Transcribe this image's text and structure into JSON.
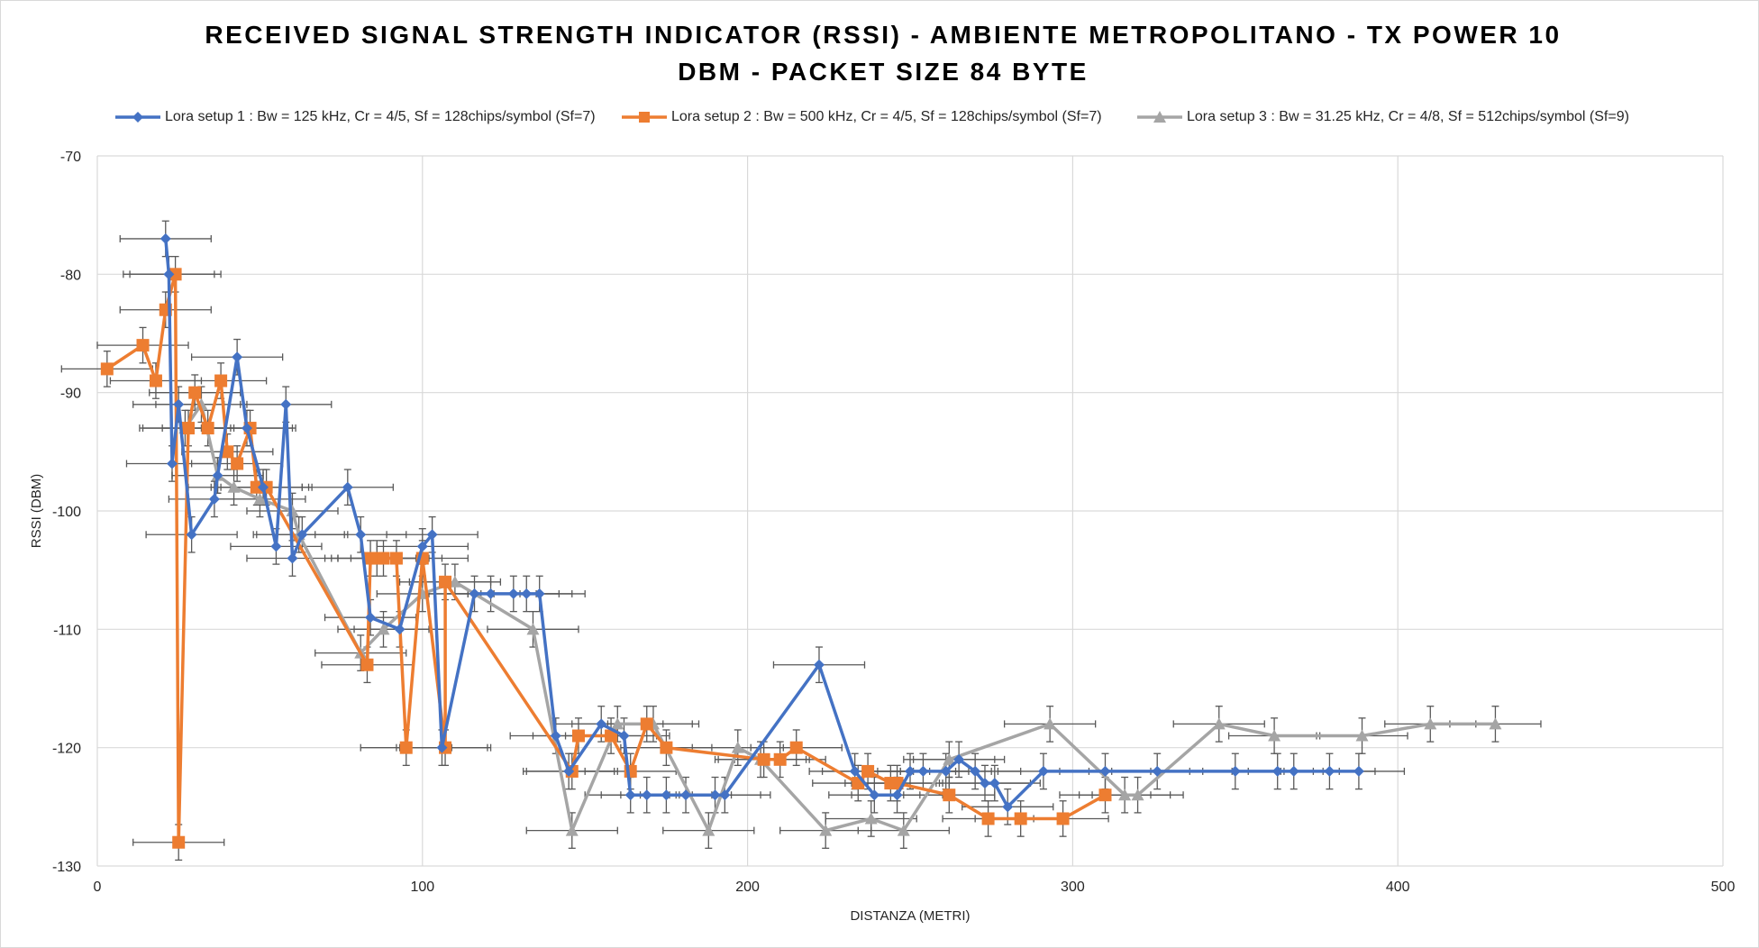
{
  "chart_data": {
    "type": "scatter",
    "title_line1": "RECEIVED SIGNAL STRENGTH INDICATOR (RSSI) - AMBIENTE METROPOLITANO - TX POWER 10",
    "title_line2": "DBM - PACKET SIZE 84 BYTE",
    "xlabel": "DISTANZA (METRI)",
    "ylabel": "RSSI (DBM)",
    "xlim": [
      0,
      500
    ],
    "ylim": [
      -130,
      -70
    ],
    "xticks": [
      "0",
      "100",
      "200",
      "300",
      "400",
      "500"
    ],
    "yticks": [
      "-70",
      "-80",
      "-90",
      "-100",
      "-110",
      "-120",
      "-130"
    ],
    "grid": true,
    "legend_position": "top",
    "error_bars": {
      "x": "about ±14 m",
      "y": "about ±1.5 dBm"
    },
    "series": [
      {
        "name": "Lora setup 1 : Bw = 125 kHz, Cr = 4/5, Sf = 128chips/symbol (Sf=7)",
        "color": "#4472C4",
        "marker": "diamond",
        "points": [
          [
            21,
            -77
          ],
          [
            22,
            -80
          ],
          [
            23,
            -96
          ],
          [
            25,
            -91
          ],
          [
            29,
            -102
          ],
          [
            36,
            -99
          ],
          [
            37,
            -97
          ],
          [
            43,
            -87
          ],
          [
            46,
            -93
          ],
          [
            51,
            -98
          ],
          [
            55,
            -103
          ],
          [
            58,
            -91
          ],
          [
            60,
            -104
          ],
          [
            63,
            -102
          ],
          [
            77,
            -98
          ],
          [
            81,
            -102
          ],
          [
            84,
            -109
          ],
          [
            93,
            -110
          ],
          [
            100,
            -103
          ],
          [
            103,
            -102
          ],
          [
            106,
            -120
          ],
          [
            116,
            -107
          ],
          [
            121,
            -107
          ],
          [
            128,
            -107
          ],
          [
            132,
            -107
          ],
          [
            136,
            -107
          ],
          [
            141,
            -119
          ],
          [
            145,
            -122
          ],
          [
            155,
            -118
          ],
          [
            162,
            -119
          ],
          [
            164,
            -124
          ],
          [
            169,
            -124
          ],
          [
            175,
            -124
          ],
          [
            181,
            -124
          ],
          [
            190,
            -124
          ],
          [
            193,
            -124
          ],
          [
            222,
            -113
          ],
          [
            233,
            -122
          ],
          [
            239,
            -124
          ],
          [
            246,
            -124
          ],
          [
            250,
            -122
          ],
          [
            254,
            -122
          ],
          [
            261,
            -122
          ],
          [
            265,
            -121
          ],
          [
            270,
            -122
          ],
          [
            273,
            -123
          ],
          [
            276,
            -123
          ],
          [
            280,
            -125
          ],
          [
            291,
            -122
          ],
          [
            310,
            -122
          ],
          [
            326,
            -122
          ],
          [
            350,
            -122
          ],
          [
            363,
            -122
          ],
          [
            368,
            -122
          ],
          [
            379,
            -122
          ],
          [
            388,
            -122
          ]
        ]
      },
      {
        "name": "Lora setup 2 : Bw = 500 kHz, Cr = 4/5, Sf = 128chips/symbol (Sf=7)",
        "color": "#ED7D31",
        "marker": "square",
        "points": [
          [
            3,
            -88
          ],
          [
            14,
            -86
          ],
          [
            18,
            -89
          ],
          [
            21,
            -83
          ],
          [
            24,
            -80
          ],
          [
            25,
            -128
          ],
          [
            28,
            -93
          ],
          [
            30,
            -90
          ],
          [
            34,
            -93
          ],
          [
            38,
            -89
          ],
          [
            40,
            -95
          ],
          [
            43,
            -96
          ],
          [
            47,
            -93
          ],
          [
            49,
            -98
          ],
          [
            52,
            -98
          ],
          [
            83,
            -113
          ],
          [
            84,
            -104
          ],
          [
            86,
            -104
          ],
          [
            88,
            -104
          ],
          [
            92,
            -104
          ],
          [
            95,
            -120
          ],
          [
            100,
            -104
          ],
          [
            107,
            -120
          ],
          [
            107,
            -106
          ],
          [
            146,
            -122
          ],
          [
            148,
            -119
          ],
          [
            158,
            -119
          ],
          [
            164,
            -122
          ],
          [
            169,
            -118
          ],
          [
            175,
            -120
          ],
          [
            205,
            -121
          ],
          [
            210,
            -121
          ],
          [
            215,
            -120
          ],
          [
            234,
            -123
          ],
          [
            237,
            -122
          ],
          [
            244,
            -123
          ],
          [
            246,
            -123
          ],
          [
            262,
            -124
          ],
          [
            274,
            -126
          ],
          [
            284,
            -126
          ],
          [
            297,
            -126
          ],
          [
            310,
            -124
          ]
        ]
      },
      {
        "name": "Lora setup 3 : Bw = 31.25 kHz, Cr = 4/8, Sf = 512chips/symbol (Sf=9)",
        "color": "#A5A5A5",
        "marker": "triangle",
        "points": [
          [
            27,
            -93
          ],
          [
            32,
            -91
          ],
          [
            37,
            -97
          ],
          [
            42,
            -98
          ],
          [
            50,
            -99
          ],
          [
            60,
            -100
          ],
          [
            62,
            -102
          ],
          [
            81,
            -112
          ],
          [
            88,
            -110
          ],
          [
            100,
            -107
          ],
          [
            110,
            -106
          ],
          [
            134,
            -110
          ],
          [
            146,
            -127
          ],
          [
            160,
            -118
          ],
          [
            171,
            -118
          ],
          [
            188,
            -127
          ],
          [
            197,
            -120
          ],
          [
            204,
            -121
          ],
          [
            224,
            -127
          ],
          [
            238,
            -126
          ],
          [
            248,
            -127
          ],
          [
            262,
            -121
          ],
          [
            293,
            -118
          ],
          [
            316,
            -124
          ],
          [
            320,
            -124
          ],
          [
            345,
            -118
          ],
          [
            362,
            -119
          ],
          [
            389,
            -119
          ],
          [
            410,
            -118
          ],
          [
            430,
            -118
          ]
        ]
      }
    ]
  }
}
